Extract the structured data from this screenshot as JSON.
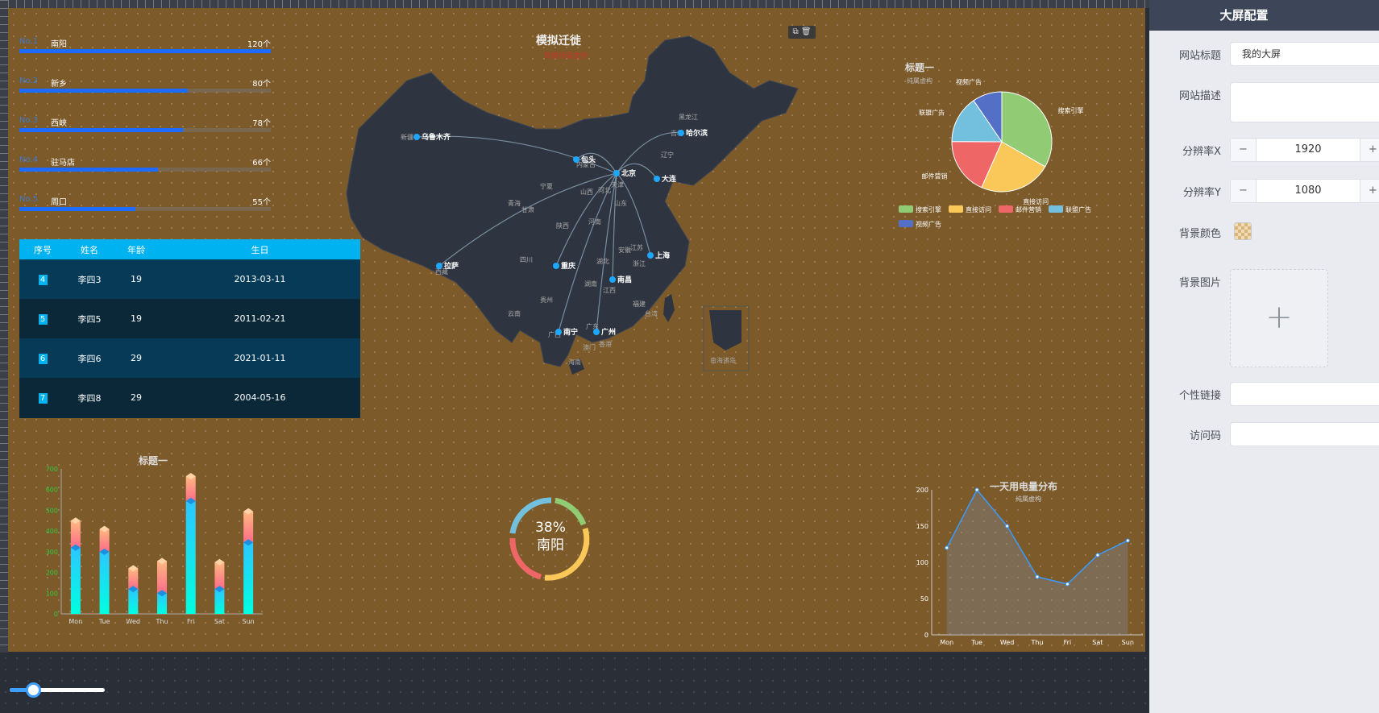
{
  "ranking": [
    {
      "no": "No.1",
      "name": "南阳",
      "value": "120个",
      "ratio": 1.0
    },
    {
      "no": "No.2",
      "name": "新乡",
      "value": "80个",
      "ratio": 0.67
    },
    {
      "no": "No.3",
      "name": "西峡",
      "value": "78个",
      "ratio": 0.65
    },
    {
      "no": "No.4",
      "name": "驻马店",
      "value": "66个",
      "ratio": 0.55
    },
    {
      "no": "No.5",
      "name": "周口",
      "value": "55个",
      "ratio": 0.46
    }
  ],
  "table": {
    "headers": [
      "序号",
      "姓名",
      "年龄",
      "生日"
    ],
    "rows": [
      {
        "idx": "4",
        "name": "李四3",
        "age": "19",
        "birthday": "2013-03-11"
      },
      {
        "idx": "5",
        "name": "李四5",
        "age": "19",
        "birthday": "2011-02-21"
      },
      {
        "idx": "6",
        "name": "李四6",
        "age": "29",
        "birthday": "2021-01-11"
      },
      {
        "idx": "7",
        "name": "李四8",
        "age": "29",
        "birthday": "2004-05-16"
      }
    ]
  },
  "map": {
    "title": "模拟迁徙",
    "subtitle": "数据纯属虚构",
    "tools_icons": [
      "copy-icon",
      "delete-icon"
    ],
    "south_sea_label": "南海诸岛",
    "cities": [
      {
        "name": "乌鲁木齐"
      },
      {
        "name": "包头"
      },
      {
        "name": "北京"
      },
      {
        "name": "大连"
      },
      {
        "name": "哈尔滨"
      },
      {
        "name": "拉萨"
      },
      {
        "name": "重庆"
      },
      {
        "name": "上海"
      },
      {
        "name": "南昌"
      },
      {
        "name": "南宁"
      },
      {
        "name": "广州"
      }
    ],
    "provinces": [
      "新疆",
      "内蒙古",
      "黑龙江",
      "吉林",
      "辽宁",
      "青海",
      "甘肃",
      "宁夏",
      "山西",
      "河北",
      "天津",
      "山东",
      "陕西",
      "河南",
      "西藏",
      "四川",
      "湖北",
      "安徽",
      "江苏",
      "浙江",
      "湖南",
      "贵州",
      "云南",
      "福建",
      "台湾",
      "广西",
      "广东",
      "澳门",
      "香港",
      "海南",
      "江西"
    ]
  },
  "pie": {
    "title": "标题一",
    "subtitle": "纯属虚构",
    "colors": [
      "#91cc75",
      "#fac858",
      "#ee6666",
      "#73c0de",
      "#5470c6"
    ],
    "legend": [
      "搜索引擎",
      "直接访问",
      "邮件营销",
      "联盟广告",
      "视频广告"
    ]
  },
  "gauge": {
    "percent": "38%",
    "label": "南阳"
  },
  "chart_data": [
    {
      "type": "bar",
      "title": "标题一",
      "categories": [
        "Mon",
        "Tue",
        "Wed",
        "Thu",
        "Fri",
        "Sat",
        "Sun"
      ],
      "series": [
        {
          "values": [
            320,
            300,
            120,
            100,
            545,
            120,
            345
          ]
        },
        {
          "values": [
            450,
            410,
            220,
            255,
            665,
            250,
            495
          ]
        }
      ],
      "ylim": [
        0,
        700
      ],
      "yticks": [
        "0",
        "100",
        "200",
        "300",
        "400",
        "500",
        "600",
        "700"
      ]
    },
    {
      "type": "pie",
      "title": "标题一",
      "subtitle": "纯属虚构",
      "slices": [
        {
          "name": "搜索引擎",
          "value": 1048
        },
        {
          "name": "直接访问",
          "value": 735
        },
        {
          "name": "邮件营销",
          "value": 580
        },
        {
          "name": "联盟广告",
          "value": 484
        },
        {
          "name": "视频广告",
          "value": 300
        }
      ]
    },
    {
      "type": "area",
      "title": "一天用电量分布",
      "subtitle": "纯属虚构",
      "categories": [
        "Mon",
        "Tue",
        "Wed",
        "Thu",
        "Fri",
        "Sat",
        "Sun"
      ],
      "values": [
        120,
        200,
        150,
        80,
        70,
        110,
        130
      ],
      "ylim": [
        0,
        200
      ],
      "yticks": [
        "0",
        "50",
        "100",
        "150",
        "200"
      ]
    }
  ],
  "panel": {
    "title": "大屏配置",
    "site_title_label": "网站标题",
    "site_title_value": "我的大屏",
    "site_desc_label": "网站描述",
    "res_x_label": "分辨率X",
    "res_x_value": "1920",
    "res_y_label": "分辨率Y",
    "res_y_value": "1080",
    "minus": "−",
    "plus": "+",
    "bg_color_label": "背景颜色",
    "bg_image_label": "背景图片",
    "upload_symbol": "+",
    "link_label": "个性链接",
    "code_label": "访问码"
  },
  "zoom_slider": {
    "ratio": 0.25
  }
}
